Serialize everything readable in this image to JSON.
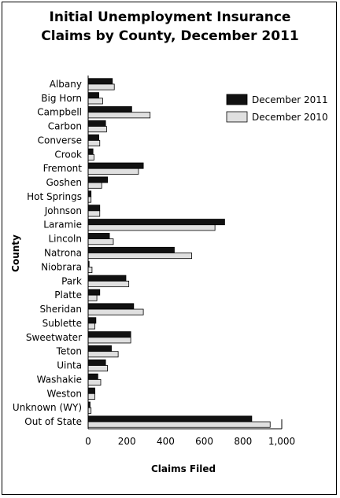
{
  "chart_data": {
    "type": "bar",
    "orientation": "horizontal",
    "title_line1": "Initial Unemployment Insurance",
    "title_line2": "Claims by County, December 2011",
    "xlabel": "Claims Filed",
    "ylabel": "County",
    "xlim": [
      0,
      1000
    ],
    "xticks": [
      "0",
      "200",
      "400",
      "600",
      "800",
      "1,000"
    ],
    "xtick_values": [
      0,
      200,
      400,
      600,
      800,
      1000
    ],
    "legend_position": "top-right",
    "categories": [
      "Albany",
      "Big Horn",
      "Campbell",
      "Carbon",
      "Converse",
      "Crook",
      "Fremont",
      "Goshen",
      "Hot Springs",
      "Johnson",
      "Laramie",
      "Lincoln",
      "Natrona",
      "Niobrara",
      "Park",
      "Platte",
      "Sheridan",
      "Sublette",
      "Sweetwater",
      "Teton",
      "Uinta",
      "Washakie",
      "Weston",
      "Unknown (WY)",
      "Out of State"
    ],
    "series": [
      {
        "name": "December 2011",
        "color": "#111111",
        "values": [
          125,
          55,
          225,
          90,
          55,
          25,
          285,
          100,
          15,
          60,
          705,
          110,
          445,
          5,
          195,
          60,
          235,
          40,
          220,
          120,
          90,
          50,
          35,
          10,
          845
        ]
      },
      {
        "name": "December 2010",
        "color": "#e0e0e0",
        "values": [
          135,
          75,
          320,
          95,
          60,
          30,
          260,
          70,
          15,
          60,
          655,
          130,
          535,
          20,
          210,
          45,
          285,
          35,
          220,
          155,
          100,
          65,
          35,
          15,
          940
        ]
      }
    ]
  }
}
